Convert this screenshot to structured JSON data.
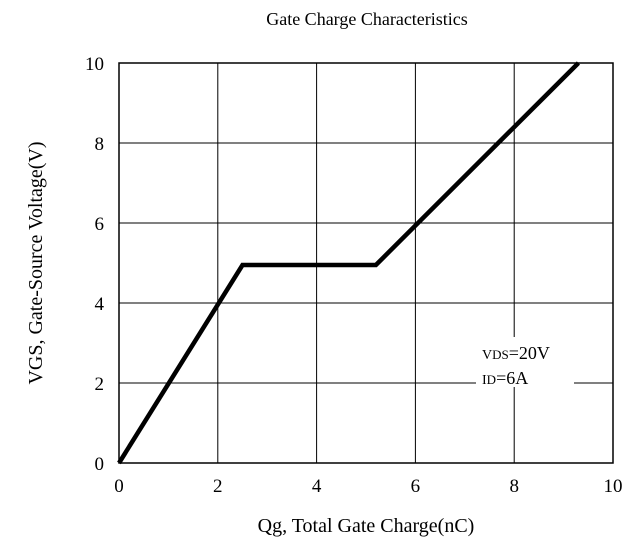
{
  "chart_data": {
    "type": "line",
    "title": "Gate Charge Characteristics",
    "xlabel": "Qg, Total Gate Charge(nC)",
    "ylabel": "VGS, Gate-Source Voltage(V)",
    "xlim": [
      0,
      10
    ],
    "ylim": [
      0,
      10
    ],
    "xticks": [
      "0",
      "2",
      "4",
      "6",
      "8",
      "10"
    ],
    "yticks": [
      "0",
      "2",
      "4",
      "6",
      "8",
      "10"
    ],
    "grid": true,
    "series": [
      {
        "x": [
          0,
          2.5,
          5.2,
          9.3
        ],
        "y": [
          0,
          4.95,
          4.95,
          10
        ],
        "color": "#000000"
      }
    ],
    "annotations": [
      "VDS=20V",
      "ID=6A"
    ]
  }
}
